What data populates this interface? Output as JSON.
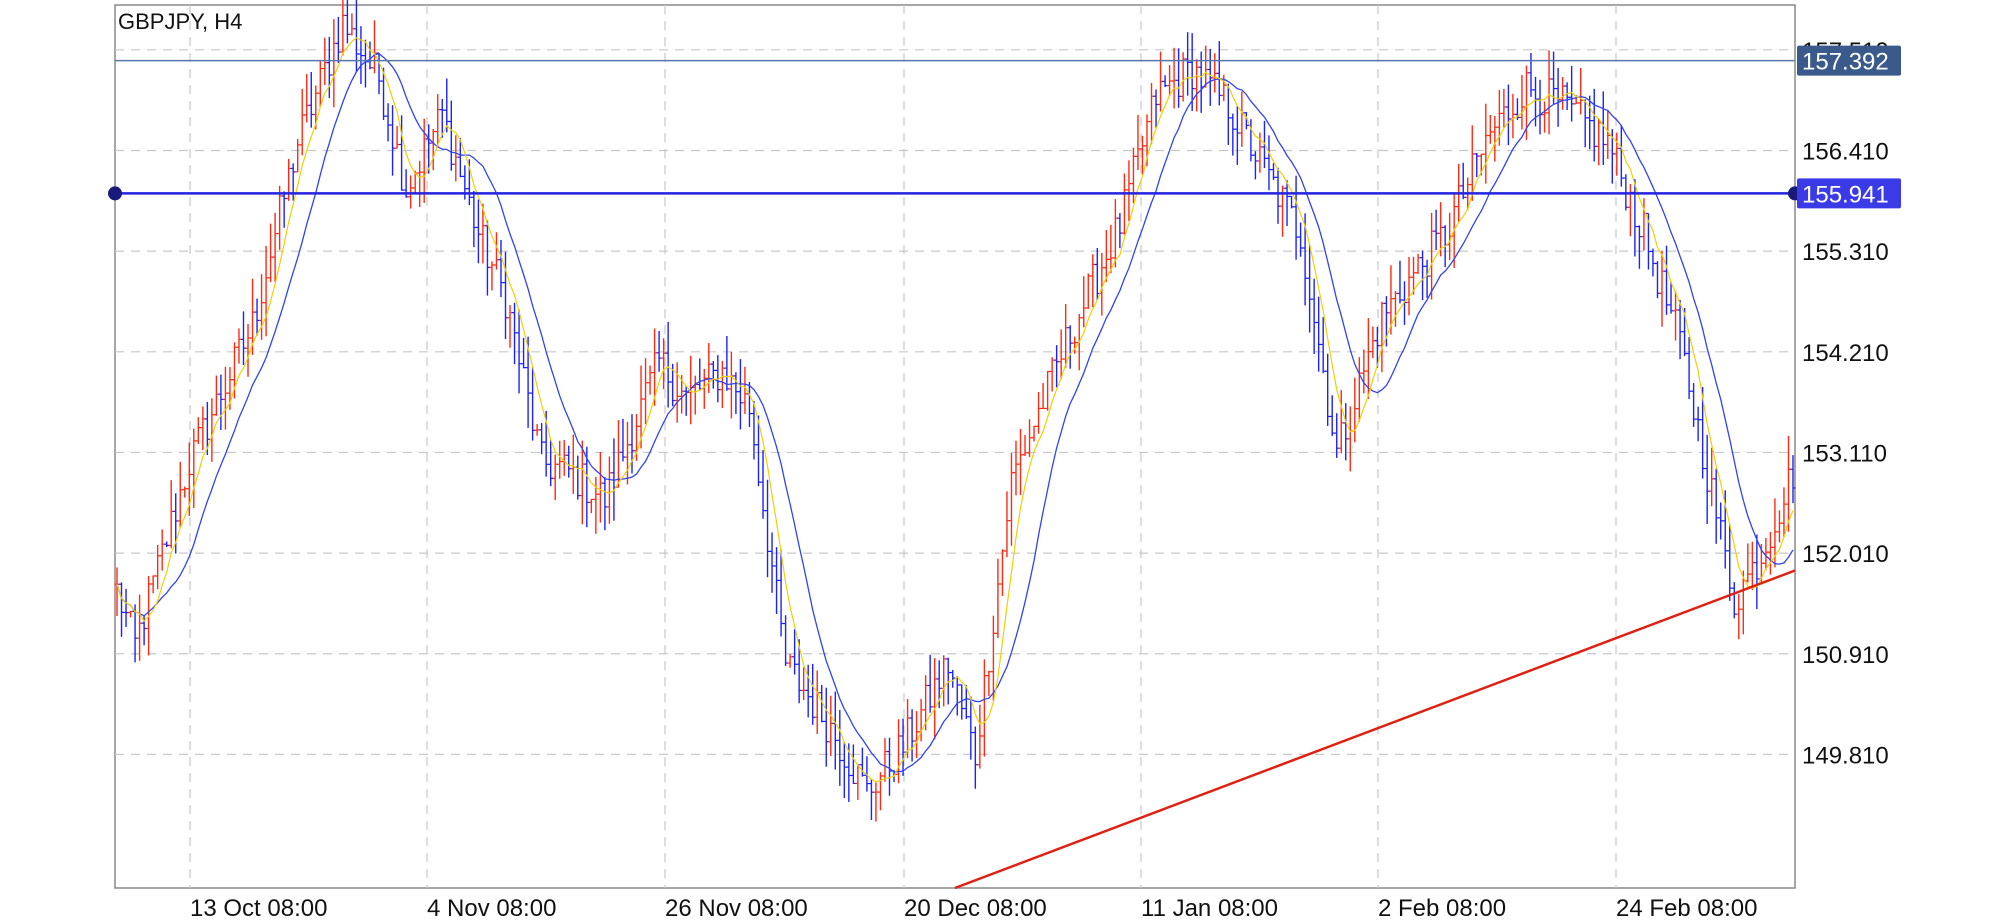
{
  "header": {
    "symbol_label": "GBPJPY, H4"
  },
  "colors": {
    "bull_bar": "#ff2a12",
    "bear_bar": "#1a22ff",
    "ma_fast": "#f0d000",
    "ma_slow": "#3344ee",
    "hline_top": "#5577aa",
    "hline_main": "#2323e0",
    "trendline": "#e02010",
    "grid": "#c8c8c8",
    "badge_top": "#3a5a8c",
    "badge_main": "#3a3ae6"
  },
  "chart_data": {
    "type": "candlestick",
    "title": "GBPJPY, H4",
    "ylim": [
      148.35,
      158.0
    ],
    "y_ticks": [
      "157.510",
      "156.410",
      "155.310",
      "154.210",
      "153.110",
      "152.010",
      "150.910",
      "149.810"
    ],
    "x_ticks": [
      "13 Oct 08:00",
      "4 Nov 08:00",
      "26 Nov 08:00",
      "20 Dec 08:00",
      "11 Jan 08:00",
      "2 Feb 08:00",
      "24 Feb 08:00"
    ],
    "grid": true,
    "price_path": [
      [
        0,
        151.6
      ],
      [
        4,
        151.0
      ],
      [
        16,
        153.0
      ],
      [
        30,
        154.5
      ],
      [
        40,
        156.5
      ],
      [
        50,
        157.8
      ],
      [
        58,
        157.2
      ],
      [
        64,
        156.0
      ],
      [
        72,
        156.8
      ],
      [
        80,
        155.5
      ],
      [
        86,
        154.8
      ],
      [
        94,
        153.0
      ],
      [
        100,
        152.9
      ],
      [
        108,
        152.6
      ],
      [
        120,
        154.1
      ],
      [
        126,
        153.7
      ],
      [
        134,
        154.0
      ],
      [
        140,
        153.6
      ],
      [
        148,
        150.8
      ],
      [
        158,
        150.1
      ],
      [
        166,
        149.4
      ],
      [
        174,
        149.9
      ],
      [
        184,
        150.8
      ],
      [
        190,
        149.8
      ],
      [
        198,
        152.8
      ],
      [
        210,
        154.3
      ],
      [
        222,
        155.6
      ],
      [
        230,
        157.0
      ],
      [
        238,
        157.3
      ],
      [
        246,
        156.9
      ],
      [
        254,
        156.2
      ],
      [
        262,
        155.5
      ],
      [
        270,
        153.1
      ],
      [
        280,
        154.6
      ],
      [
        294,
        155.5
      ],
      [
        304,
        156.6
      ],
      [
        312,
        157.1
      ],
      [
        320,
        156.9
      ],
      [
        330,
        156.5
      ],
      [
        338,
        155.5
      ],
      [
        346,
        154.3
      ],
      [
        352,
        152.9
      ],
      [
        358,
        151.5
      ],
      [
        364,
        152.0
      ],
      [
        371,
        152.9
      ]
    ],
    "horizontal_lines": [
      {
        "price": 157.392,
        "label": "157.392"
      },
      {
        "price": 155.941,
        "label": "155.941"
      }
    ],
    "trendline": {
      "from_price": 148.35,
      "to_price": 151.82
    }
  }
}
